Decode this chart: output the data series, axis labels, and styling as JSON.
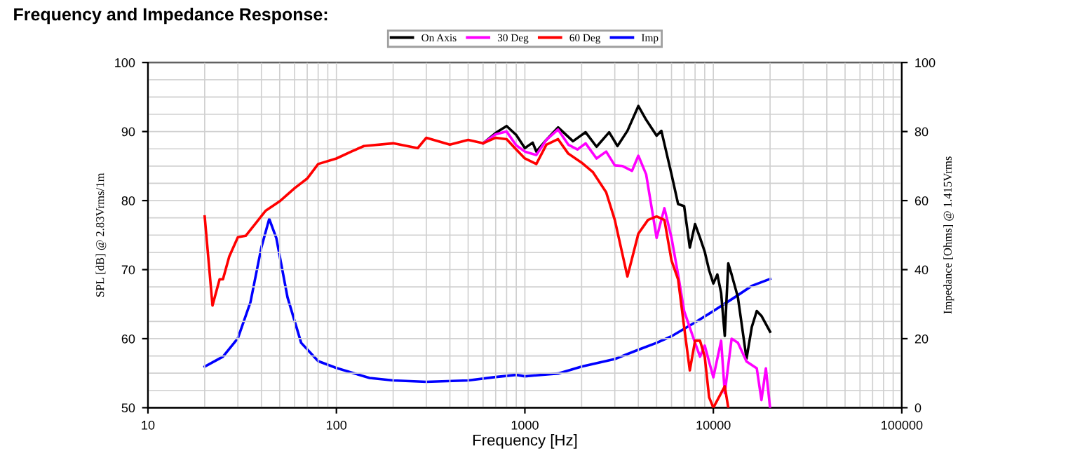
{
  "chart_data": {
    "type": "line",
    "title": "Frequency and Impedance Response:",
    "xlabel": "Frequency [Hz]",
    "ylabel": "SPL [dB] @ 2.83Vrms/1m",
    "y2label": "Impedance [Ohms] @ 1.415Vrms",
    "log": "x",
    "xlim": [
      10,
      100000
    ],
    "xticks": [
      10,
      100,
      1000,
      10000,
      100000
    ],
    "ylim": [
      50,
      100
    ],
    "yticks": [
      50,
      60,
      70,
      80,
      90,
      100
    ],
    "y2lim": [
      0,
      100
    ],
    "y2ticks": [
      0,
      20,
      40,
      60,
      80,
      100
    ],
    "grid": true,
    "legend": "top",
    "line_style": "solid",
    "marker": "none",
    "series": [
      {
        "name": "On Axis",
        "color": "#000000",
        "x": [
          600,
          700,
          800,
          900,
          1000,
          1100,
          1150,
          1300,
          1500,
          1800,
          2100,
          2400,
          2800,
          3100,
          3500,
          4000,
          4400,
          5000,
          5300,
          6000,
          6500,
          7000,
          7500,
          8000,
          8500,
          9000,
          9500,
          10000,
          10500,
          11000,
          11500,
          12000,
          12500,
          13500,
          15000,
          16000,
          17000,
          18000,
          20000
        ],
        "values": [
          88.3,
          89.8,
          90.8,
          89.5,
          87.6,
          88.4,
          87.1,
          88.8,
          90.6,
          88.6,
          89.9,
          87.8,
          89.9,
          87.9,
          90.1,
          93.7,
          91.7,
          89.4,
          90.1,
          83.8,
          79.5,
          79.2,
          73.2,
          76.6,
          74.6,
          72.6,
          69.9,
          68.0,
          69.3,
          66.6,
          60.4,
          70.9,
          69.3,
          66.0,
          57.1,
          61.7,
          64.0,
          63.3,
          61.0
        ]
      },
      {
        "name": "30 Deg",
        "color": "#ff00ff",
        "x": [
          600,
          700,
          800,
          900,
          1000,
          1150,
          1300,
          1500,
          1700,
          1900,
          2100,
          2400,
          2700,
          3000,
          3300,
          3700,
          4000,
          4400,
          5000,
          5500,
          6000,
          6500,
          7000,
          8000,
          8500,
          9000,
          10000,
          11000,
          11500,
          12500,
          13500,
          15000,
          17000,
          18000,
          19000,
          20000
        ],
        "values": [
          88.3,
          89.6,
          90.0,
          88.0,
          87.1,
          86.6,
          88.8,
          90.3,
          88.1,
          87.4,
          88.3,
          86.1,
          87.1,
          85.1,
          85.0,
          84.3,
          86.5,
          83.8,
          74.6,
          78.9,
          74.6,
          69.3,
          64.0,
          59.4,
          57.4,
          59.0,
          54.4,
          59.7,
          52.1,
          60.0,
          59.4,
          56.7,
          55.7,
          51.1,
          55.7,
          50
        ]
      },
      {
        "name": "60 Deg",
        "color": "#ff0000",
        "x": [
          20,
          22,
          24,
          25,
          27,
          30,
          33,
          37,
          42,
          50,
          60,
          70,
          80,
          100,
          120,
          140,
          200,
          270,
          300,
          400,
          500,
          600,
          700,
          800,
          900,
          1000,
          1150,
          1300,
          1500,
          1700,
          2000,
          2300,
          2700,
          3000,
          3500,
          4000,
          4500,
          5000,
          5500,
          6000,
          6500,
          7000,
          7500,
          8000,
          8500,
          9000,
          9500,
          10000,
          11500,
          12000
        ],
        "values": [
          77.7,
          64.8,
          68.6,
          68.6,
          71.9,
          74.7,
          74.9,
          76.6,
          78.5,
          79.9,
          81.8,
          83.2,
          85.3,
          86.1,
          87.1,
          87.9,
          88.3,
          87.6,
          89.1,
          88.1,
          88.8,
          88.3,
          89.1,
          88.9,
          87.4,
          86.1,
          85.3,
          88.1,
          88.9,
          86.8,
          85.5,
          84.1,
          81.2,
          77.2,
          69.0,
          75.2,
          77.2,
          77.7,
          77.2,
          71.3,
          68.6,
          61.7,
          55.4,
          59.7,
          59.7,
          57.4,
          51.5,
          50,
          53.1,
          50
        ]
      },
      {
        "name": "Imp",
        "color": "#0000ff",
        "axis": "y2",
        "x": [
          20,
          25,
          30,
          35,
          40,
          44,
          48,
          55,
          65,
          80,
          100,
          150,
          200,
          300,
          500,
          700,
          900,
          1000,
          1500,
          2000,
          3000,
          4000,
          5000,
          6000,
          8000,
          10000,
          13000,
          16000,
          20000
        ],
        "values": [
          11.9,
          14.8,
          20.1,
          30.6,
          46.5,
          54.7,
          49.1,
          32.0,
          18.8,
          13.5,
          11.5,
          8.6,
          7.9,
          7.5,
          7.9,
          8.9,
          9.5,
          9.1,
          9.9,
          11.9,
          14.1,
          16.8,
          18.8,
          20.7,
          24.7,
          28.0,
          32.0,
          35.3,
          37.3
        ]
      }
    ]
  }
}
